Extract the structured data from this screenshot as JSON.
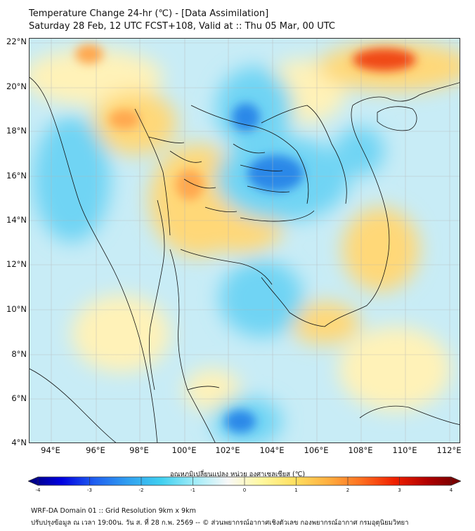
{
  "title_line1": "Temperature Change 24-hr (℃) - [Data Assimilation]",
  "title_line2": "Saturday 28 Feb, 12 UTC FCST+108, Valid at :: Thu 05 Mar, 00 UTC",
  "lat_labels": [
    "22°N",
    "20°N",
    "18°N",
    "16°N",
    "14°N",
    "12°N",
    "10°N",
    "8°N",
    "6°N",
    "4°N"
  ],
  "lon_labels": [
    "94°E",
    "96°E",
    "98°E",
    "100°E",
    "102°E",
    "104°E",
    "106°E",
    "108°E",
    "110°E",
    "112°E"
  ],
  "colorbar": {
    "title": "อุณหภูมิเปลี่ยนแปลง หน่วย องศาเซลเซียส (℃)",
    "min": -4,
    "max": 4,
    "tick_labels": [
      "-4",
      "-3",
      "-2",
      "-1",
      "0",
      "1",
      "2",
      "3",
      "4"
    ],
    "colors": [
      "#000078",
      "#0000e0",
      "#2060f0",
      "#30a0f0",
      "#40d0f0",
      "#a0ecf8",
      "#f8f8f8",
      "#fff8a0",
      "#ffe060",
      "#ffb040",
      "#ff7020",
      "#f02000",
      "#b00000",
      "#6e0000"
    ]
  },
  "footer_line1": "WRF-DA Domain 01 :: Grid Resolution 9km x 9km",
  "footer_line2": "ปรับปรุงข้อมูล ณ เวลา 19:00น. วัน ส. ที่ 28 ก.พ. 2569 -- © ส่วนพยากรณ์อากาศเชิงตัวเลข กองพยากรณ์อากาศ กรมอุตุนิยมวิทยา",
  "map_colors": {
    "background": "#c8ecf6",
    "warm_light": "#fff2b8",
    "warm": "#ffd878",
    "warm_strong": "#ffa850",
    "hot": "#f04818",
    "cool": "#70d4f4",
    "cold": "#2c88e8",
    "border_line": "#111111"
  }
}
